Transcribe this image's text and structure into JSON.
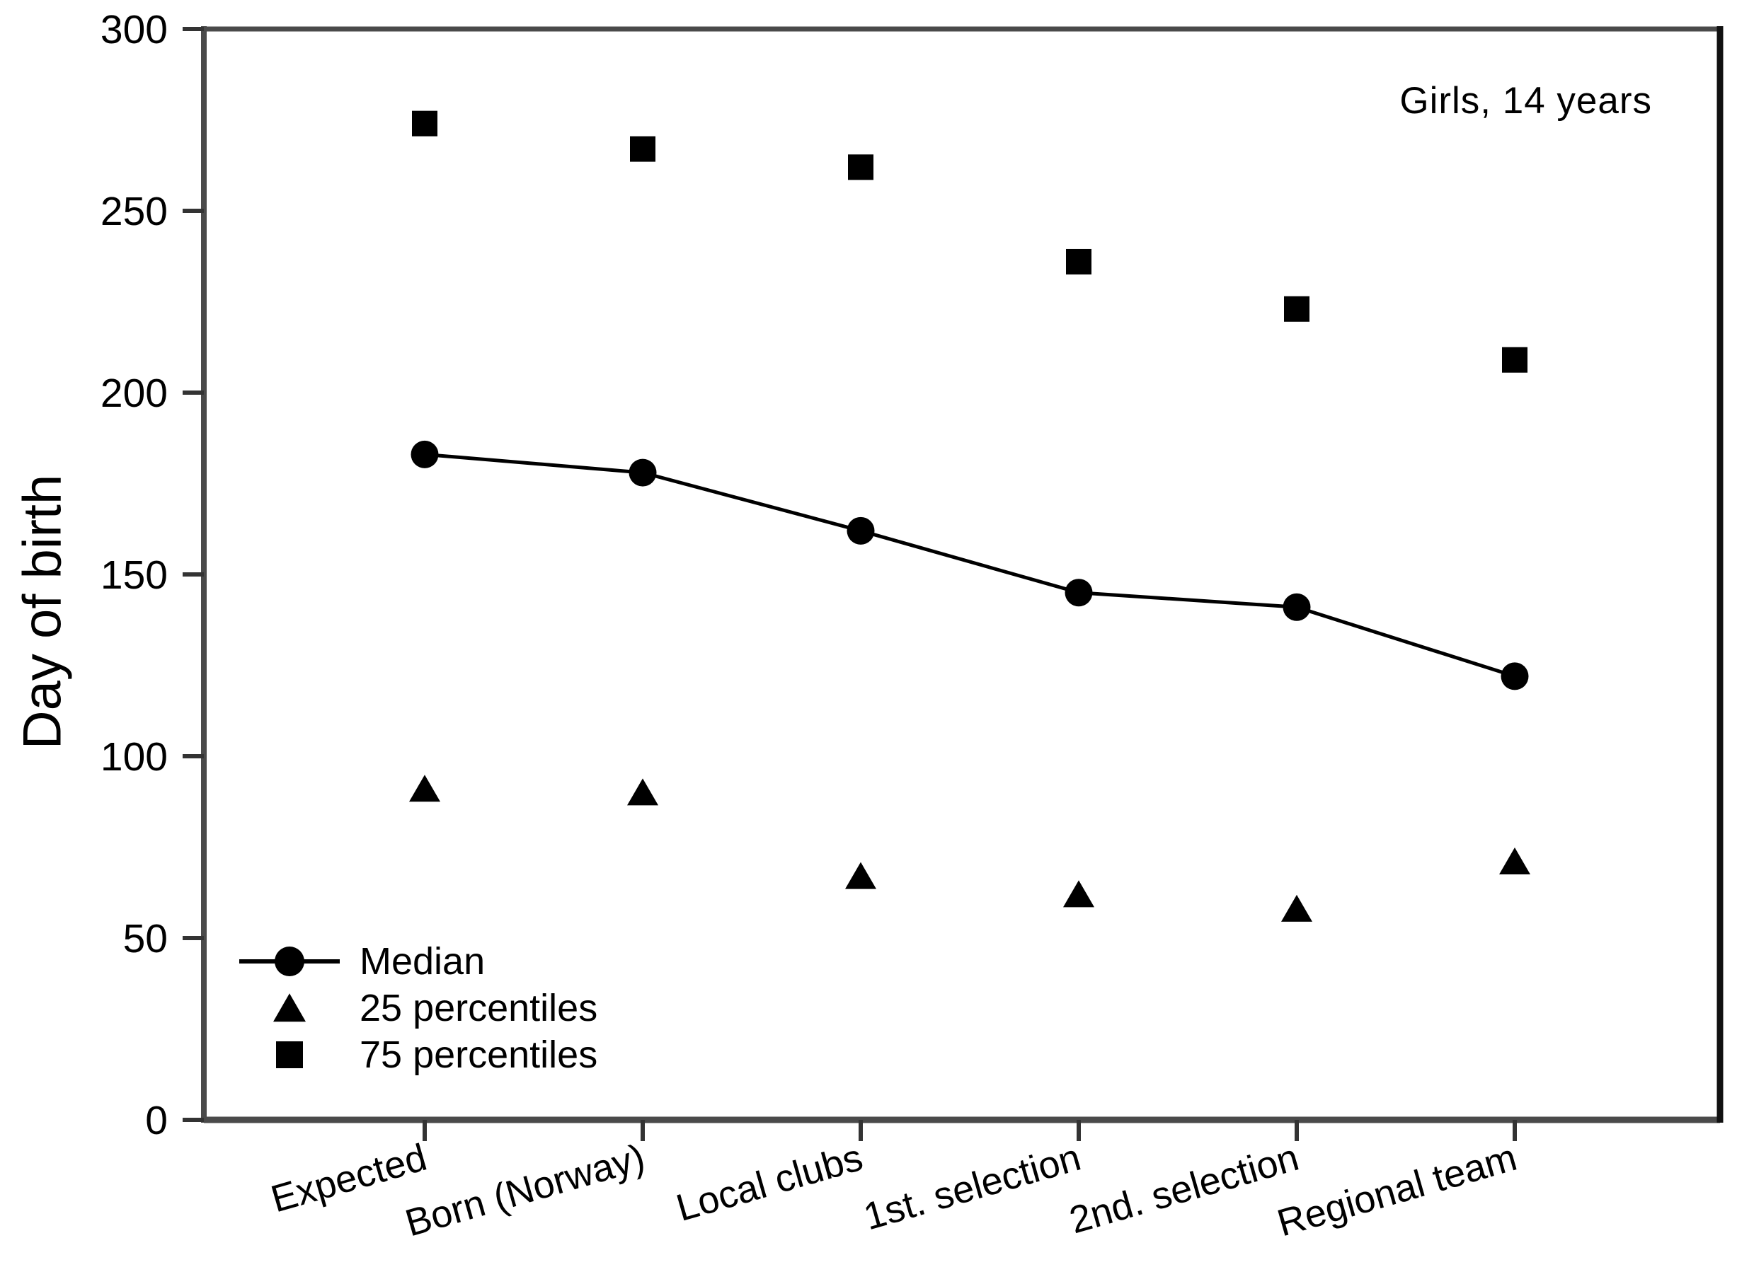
{
  "annotation": "Girls, 14 years",
  "y_axis": {
    "label": "Day of birth",
    "ticks": [
      0,
      50,
      100,
      150,
      200,
      250,
      300
    ]
  },
  "legend": [
    {
      "label": "Median",
      "marker": "circle-line"
    },
    {
      "label": "25 percentiles",
      "marker": "triangle"
    },
    {
      "label": "75 percentiles",
      "marker": "square"
    }
  ],
  "colors": {
    "foreground": "#000000",
    "background": "#ffffff",
    "axis": "#4a4a4a",
    "tick": "#333333"
  },
  "chart_data": {
    "type": "scatter",
    "categories": [
      "Expected",
      "Born (Norway)",
      "Local clubs",
      "1st. selection",
      "2nd. selection",
      "Regional team"
    ],
    "series": [
      {
        "name": "Median",
        "marker": "circle",
        "connected": true,
        "values": [
          183,
          178,
          162,
          145,
          141,
          122
        ]
      },
      {
        "name": "25 percentiles",
        "marker": "triangle",
        "connected": false,
        "values": [
          91,
          90,
          67,
          62,
          58,
          71
        ]
      },
      {
        "name": "75 percentiles",
        "marker": "square",
        "connected": false,
        "values": [
          274,
          267,
          262,
          236,
          223,
          209
        ]
      }
    ],
    "title": "",
    "xlabel": "",
    "ylabel": "Day of birth",
    "ylim": [
      0,
      300
    ],
    "annotation": "Girls, 14 years",
    "legend_position": "lower-left",
    "grid": false
  }
}
